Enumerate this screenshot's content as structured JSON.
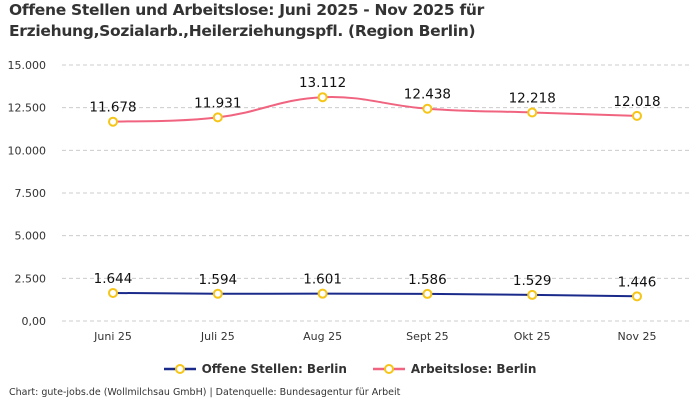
{
  "title": "Offene Stellen und Arbeitslose: Juni 2025 - Nov 2025 für Erziehung,Sozialarb.,Heilerziehungspfl. (Region Berlin)",
  "source": "Chart: gute-jobs.de (Wollmilchsau GmbH) | Datenquelle: Bundesagentur für Arbeit",
  "chart_data": {
    "type": "line",
    "title": "Offene Stellen und Arbeitslose: Juni 2025 - Nov 2025 für Erziehung,Sozialarb.,Heilerziehungspfl. (Region Berlin)",
    "categories": [
      "Juni 25",
      "Juli 25",
      "Aug 25",
      "Sept 25",
      "Okt 25",
      "Nov 25"
    ],
    "ylim": [
      0,
      15000
    ],
    "yticks": [
      0,
      2500,
      5000,
      7500,
      10000,
      12500,
      15000
    ],
    "ytick_labels": [
      "0,00",
      "2.500",
      "5.000",
      "7.500",
      "10.000",
      "12.500",
      "15.000"
    ],
    "grid": true,
    "legend_position": "bottom",
    "series": [
      {
        "name": "Offene Stellen: Berlin",
        "color": "#1a2a8a",
        "marker_color": "#f5c518",
        "values": [
          1644,
          1594,
          1601,
          1586,
          1529,
          1446
        ],
        "labels": [
          "1.644",
          "1.594",
          "1.601",
          "1.586",
          "1.529",
          "1.446"
        ]
      },
      {
        "name": "Arbeitslose: Berlin",
        "color": "#f06480",
        "marker_color": "#f5c518",
        "values": [
          11678,
          11931,
          13112,
          12438,
          12218,
          12018
        ],
        "labels": [
          "11.678",
          "11.931",
          "13.112",
          "12.438",
          "12.218",
          "12.018"
        ]
      }
    ]
  }
}
